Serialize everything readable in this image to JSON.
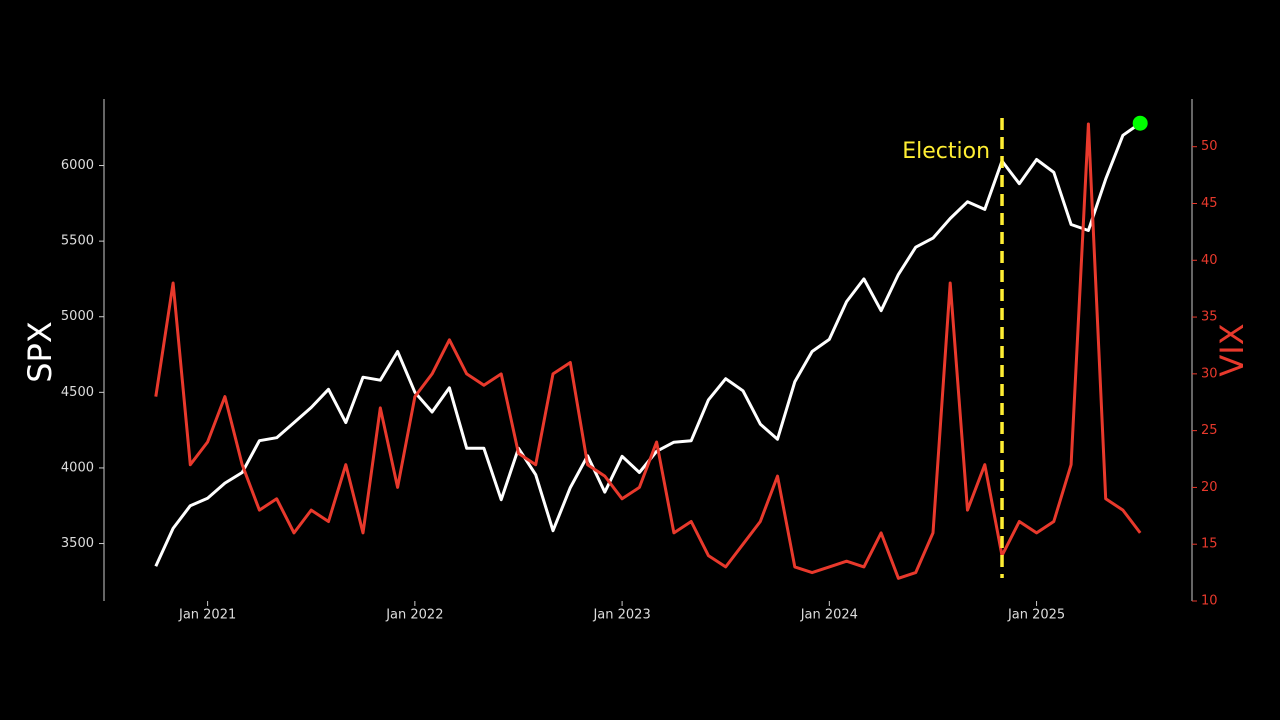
{
  "chart_data": {
    "type": "line",
    "x": [
      "2020-10",
      "2020-11",
      "2020-12",
      "2021-01",
      "2021-02",
      "2021-03",
      "2021-04",
      "2021-05",
      "2021-06",
      "2021-07",
      "2021-08",
      "2021-09",
      "2021-10",
      "2021-11",
      "2021-12",
      "2022-01",
      "2022-02",
      "2022-03",
      "2022-04",
      "2022-05",
      "2022-06",
      "2022-07",
      "2022-08",
      "2022-09",
      "2022-10",
      "2022-11",
      "2022-12",
      "2023-01",
      "2023-02",
      "2023-03",
      "2023-04",
      "2023-05",
      "2023-06",
      "2023-07",
      "2023-08",
      "2023-09",
      "2023-10",
      "2023-11",
      "2023-12",
      "2024-01",
      "2024-02",
      "2024-03",
      "2024-04",
      "2024-05",
      "2024-06",
      "2024-07",
      "2024-08",
      "2024-09",
      "2024-10",
      "2024-11",
      "2024-12",
      "2025-01",
      "2025-02",
      "2025-03",
      "2025-04",
      "2025-05",
      "2025-06",
      "2025-07"
    ],
    "xlim": [
      "2020-07",
      "2025-10"
    ],
    "xticks": [
      {
        "value": "2021-01",
        "label": "Jan 2021"
      },
      {
        "value": "2022-01",
        "label": "Jan 2022"
      },
      {
        "value": "2023-01",
        "label": "Jan 2023"
      },
      {
        "value": "2024-01",
        "label": "Jan 2024"
      },
      {
        "value": "2025-01",
        "label": "Jan 2025"
      }
    ],
    "ylabel": "SPX",
    "ylim": [
      3120,
      6440
    ],
    "yticks": [
      3500,
      4000,
      4500,
      5000,
      5500,
      6000
    ],
    "y2label": "VIX",
    "y2lim": [
      10,
      54.2
    ],
    "y2ticks": [
      10,
      15,
      20,
      25,
      30,
      35,
      40,
      45,
      50
    ],
    "series": [
      {
        "name": "SPX",
        "color": "#ffffff",
        "end_marker_color": "#00ff00",
        "values": [
          3350,
          3600,
          3750,
          3800,
          3900,
          3970,
          4180,
          4200,
          4300,
          4400,
          4520,
          4300,
          4600,
          4580,
          4770,
          4500,
          4370,
          4530,
          4130,
          4130,
          3790,
          4130,
          3955,
          3585,
          3870,
          4080,
          3840,
          4077,
          3970,
          4110,
          4170,
          4180,
          4450,
          4590,
          4510,
          4290,
          4190,
          4570,
          4770,
          4850,
          5100,
          5250,
          5040,
          5280,
          5460,
          5520,
          5650,
          5760,
          5710,
          6030,
          5880,
          6040,
          5955,
          5610,
          5570,
          5910,
          6200,
          6280
        ]
      },
      {
        "name": "VIX",
        "color": "#e8392c",
        "axis": "y2",
        "values": [
          28,
          38,
          22,
          24,
          28,
          22,
          18,
          19,
          16,
          18,
          17,
          22,
          16,
          27,
          20,
          28,
          30,
          33,
          30,
          29,
          30,
          23,
          22,
          30,
          31,
          22,
          21,
          19,
          20,
          24,
          16,
          17,
          14,
          13,
          15,
          17,
          21,
          13,
          12.5,
          13,
          13.5,
          13,
          16,
          12,
          12.5,
          16,
          38,
          18,
          22,
          14,
          17,
          16,
          17,
          22,
          52,
          19,
          18,
          16
        ]
      }
    ],
    "annotation": {
      "text": "Election",
      "x": "2024-11",
      "color": "#ffee33"
    }
  }
}
